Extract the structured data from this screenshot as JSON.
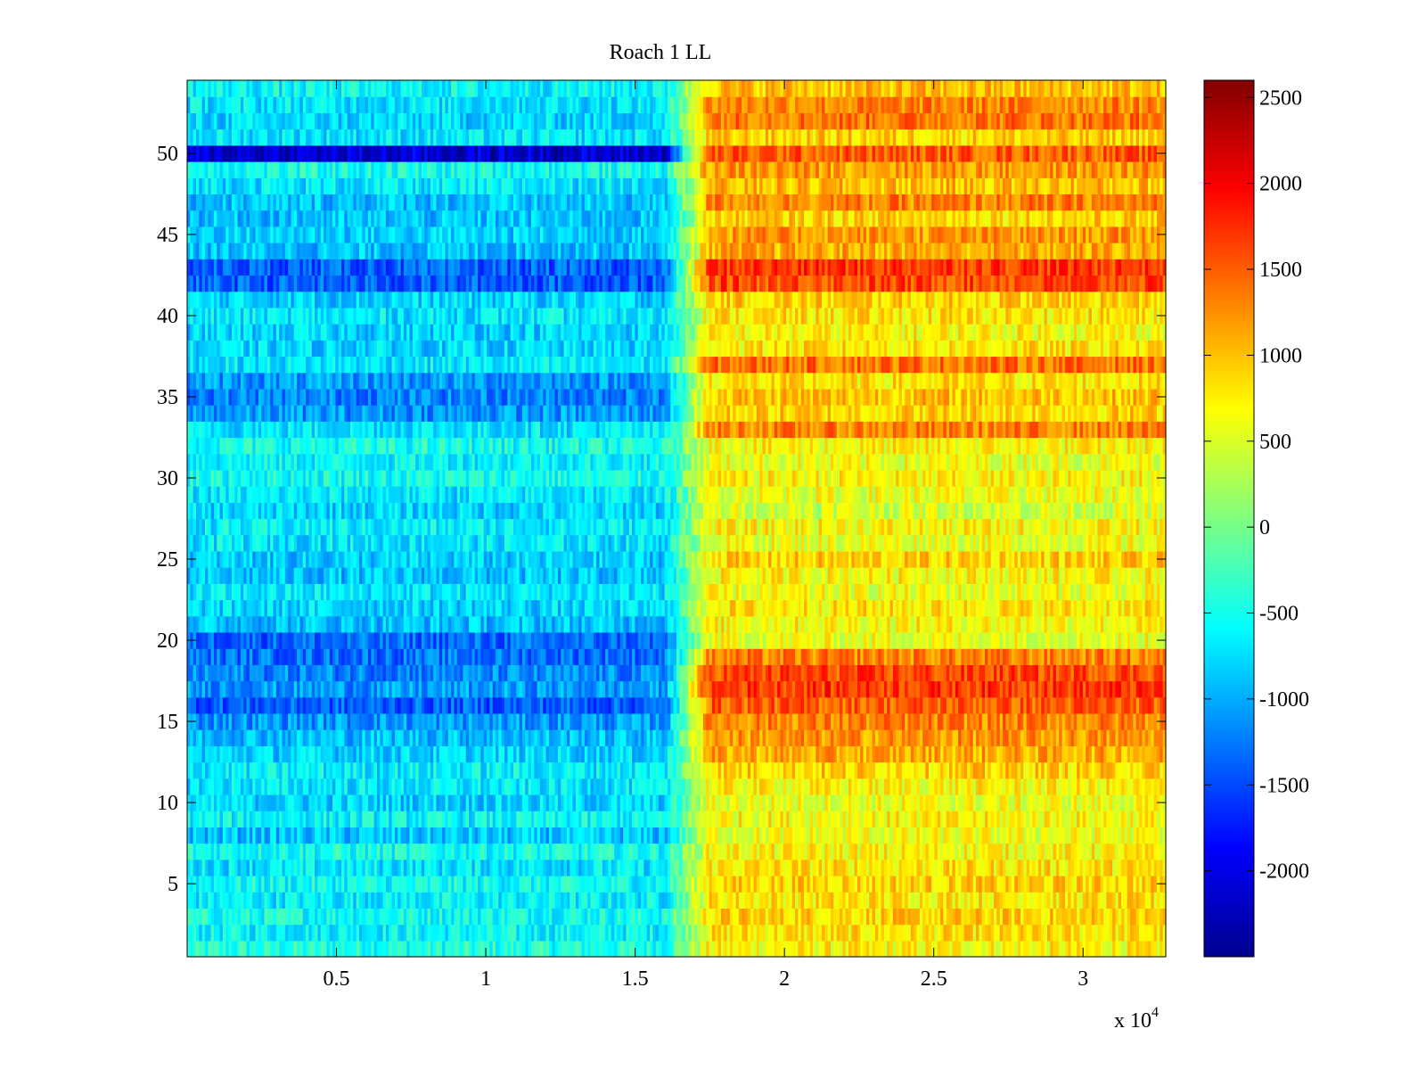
{
  "chart_data": {
    "type": "heatmap",
    "title": "Roach 1 LL",
    "xlabel": "",
    "ylabel": "",
    "x_multiplier": "x 10",
    "x_multiplier_exponent": "4",
    "xlim": [
      0,
      32768
    ],
    "ylim": [
      0.5,
      54.5
    ],
    "x_ticks": [
      0.5,
      1,
      1.5,
      2,
      2.5,
      3
    ],
    "x_tick_labels": [
      "0.5",
      "1",
      "1.5",
      "2",
      "2.5",
      "3"
    ],
    "y_ticks": [
      5,
      10,
      15,
      20,
      25,
      30,
      35,
      40,
      45,
      50
    ],
    "y_tick_labels": [
      "5",
      "10",
      "15",
      "20",
      "25",
      "30",
      "35",
      "40",
      "45",
      "50"
    ],
    "colormap": "jet",
    "clim": [
      -2500,
      2600
    ],
    "colorbar_ticks": [
      2500,
      2000,
      1500,
      1000,
      500,
      0,
      -500,
      -1000,
      -1500,
      -2000
    ],
    "colorbar_tick_labels": [
      "2500",
      "2000",
      "1500",
      "1000",
      "500",
      "0",
      "-500",
      "-1000",
      "-1500",
      "-2000"
    ],
    "rows": 54,
    "transition_x": [
      16000,
      17500
    ],
    "pre_transition_row_means": [
      -450,
      -600,
      -500,
      -650,
      -550,
      -700,
      -500,
      -900,
      -600,
      -800,
      -700,
      -650,
      -800,
      -900,
      -1100,
      -1400,
      -1100,
      -1200,
      -1300,
      -1350,
      -900,
      -800,
      -700,
      -900,
      -850,
      -700,
      -650,
      -800,
      -700,
      -500,
      -600,
      -500,
      -700,
      -1100,
      -1200,
      -1100,
      -700,
      -800,
      -800,
      -700,
      -800,
      -1400,
      -1400,
      -900,
      -800,
      -900,
      -900,
      -700,
      -500,
      -2100,
      -700,
      -800,
      -700,
      -600
    ],
    "post_transition_row_means": [
      700,
      800,
      900,
      800,
      900,
      800,
      700,
      600,
      700,
      600,
      700,
      900,
      1100,
      1200,
      1300,
      1500,
      1700,
      1600,
      1300,
      600,
      700,
      800,
      600,
      700,
      900,
      600,
      700,
      500,
      600,
      700,
      600,
      700,
      1300,
      900,
      1000,
      800,
      1400,
      800,
      700,
      800,
      900,
      1600,
      1700,
      1100,
      1200,
      900,
      1300,
      1000,
      1200,
      1500,
      900,
      1400,
      1300,
      1000
    ],
    "colors": {
      "axis": "#000000",
      "background": "#ffffff"
    }
  }
}
